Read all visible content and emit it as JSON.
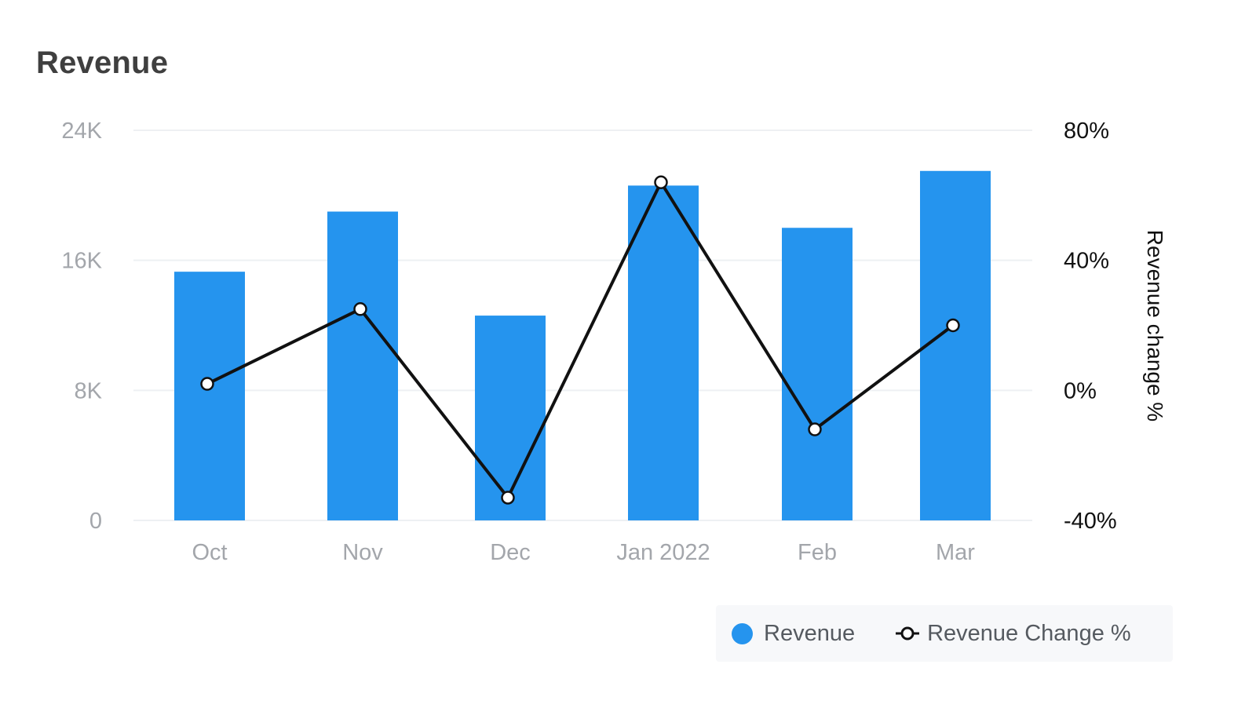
{
  "card": {
    "title": "Revenue"
  },
  "colors": {
    "bar": "#2594ee",
    "line": "#111111",
    "marker_fill": "#ffffff",
    "grid": "#eef0f3"
  },
  "legend": {
    "items": [
      {
        "label": "Revenue",
        "icon": "filled-circle-icon"
      },
      {
        "label": "Revenue Change %",
        "icon": "line-marker-icon"
      }
    ]
  },
  "chart_data": {
    "type": "bar",
    "title": "Revenue",
    "categories": [
      "Oct",
      "Nov",
      "Dec",
      "Jan 2022",
      "Feb",
      "Mar"
    ],
    "series": [
      {
        "name": "Revenue",
        "type": "bar",
        "axis": "left",
        "values": [
          15300,
          19000,
          12600,
          20600,
          18000,
          21500
        ]
      },
      {
        "name": "Revenue Change %",
        "type": "line",
        "axis": "right",
        "values": [
          2,
          25,
          -33,
          64,
          -12,
          20
        ]
      }
    ],
    "y_left": {
      "min": 0,
      "max": 24000,
      "ticks": [
        0,
        8000,
        16000,
        24000
      ],
      "tick_labels": [
        "0",
        "8K",
        "16K",
        "24K"
      ],
      "label": ""
    },
    "y_right": {
      "min": -40,
      "max": 80,
      "ticks": [
        -40,
        0,
        40,
        80
      ],
      "tick_labels": [
        "-40%",
        "0%",
        "40%",
        "80%"
      ],
      "label": "Revenue change %"
    },
    "grid": true,
    "legend_position": "bottom-right"
  }
}
